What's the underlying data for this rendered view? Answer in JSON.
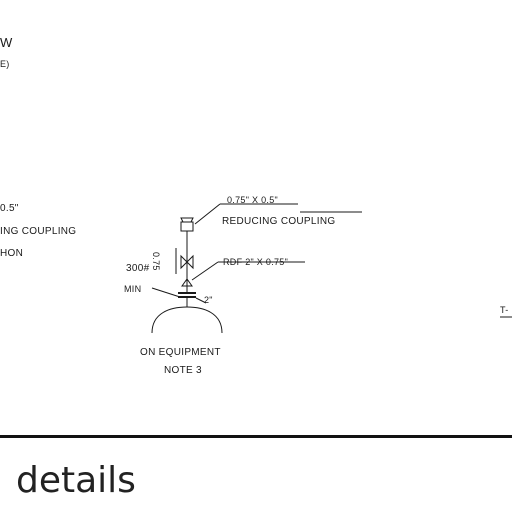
{
  "figure": {
    "top_left_labels": [
      "W",
      "E)"
    ],
    "left_notes": [
      "0.5\"",
      "ING COUPLING",
      "HON"
    ],
    "assembly": {
      "coupling_callout": "0.75\" X 0.5\"",
      "coupling_name": "REDUCING COUPLING",
      "pipe_size": "0.75",
      "valve_callout": "RDF 2\" X 0.75\"",
      "rating": "300#",
      "rating_note": "MIN",
      "flange_size": "2\"",
      "equipment_label": "ON EQUIPMENT",
      "equipment_note": "NOTE 3"
    },
    "right_edge_mark": "T-"
  },
  "caption": "details"
}
